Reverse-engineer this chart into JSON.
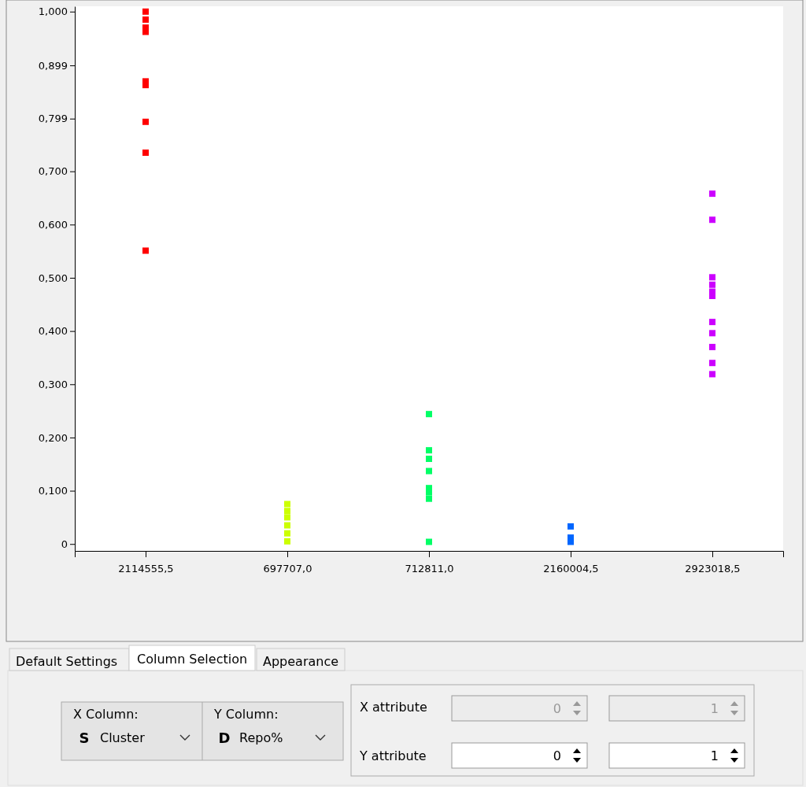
{
  "chart_data": {
    "type": "scatter",
    "categories": [
      "2114555,5",
      "697707,0",
      "712811,0",
      "2160004,5",
      "2923018,5"
    ],
    "series": [
      {
        "color": "#ff0000",
        "x": [
          "2114555,5",
          "2114555,5",
          "2114555,5",
          "2114555,5",
          "2114555,5",
          "2114555,5",
          "2114555,5",
          "2114555,5",
          "2114555,5"
        ],
        "values": [
          1.0,
          0.985,
          0.97,
          0.962,
          0.869,
          0.862,
          0.793,
          0.735,
          0.551
        ]
      },
      {
        "color": "#ccff00",
        "x": [
          "697707,0",
          "697707,0",
          "697707,0",
          "697707,0",
          "697707,0",
          "697707,0"
        ],
        "values": [
          0.005,
          0.02,
          0.035,
          0.05,
          0.062,
          0.075
        ]
      },
      {
        "color": "#00ff66",
        "x": [
          "712811,0",
          "712811,0",
          "712811,0",
          "712811,0",
          "712811,0",
          "712811,0",
          "712811,0",
          "712811,0",
          "712811,0"
        ],
        "values": [
          0.244,
          0.176,
          null,
          0.16,
          0.137,
          0.105,
          0.097,
          0.085,
          0.004
        ]
      },
      {
        "color": "#0066ff",
        "x": [
          "2160004,5",
          "2160004,5",
          "2160004,5"
        ],
        "values": [
          0.033,
          0.012,
          0.004
        ]
      },
      {
        "color": "#cc00ff",
        "x": [
          "2923018,5",
          "2923018,5",
          "2923018,5",
          "2923018,5",
          "2923018,5",
          "2923018,5",
          "2923018,5",
          "2923018,5",
          "2923018,5",
          "2923018,5",
          "2923018,5"
        ],
        "values": [
          0.658,
          0.609,
          0.501,
          0.487,
          0.474,
          0.466,
          0.417,
          0.396,
          0.37,
          0.34,
          0.319
        ]
      }
    ],
    "ylim": [
      -0.013,
      1.01
    ],
    "yticks": [
      0,
      {
        "value": 0.1,
        "label": "0,100"
      },
      {
        "value": 0.2,
        "label": "0,200"
      },
      {
        "value": 0.3,
        "label": "0,300"
      },
      {
        "value": 0.4,
        "label": "0,400"
      },
      {
        "value": 0.5,
        "label": "0,500"
      },
      {
        "value": 0.6,
        "label": "0,600"
      },
      {
        "value": 0.7,
        "label": "0,700"
      },
      {
        "value": 0.799,
        "label": "0,799"
      },
      {
        "value": 0.899,
        "label": "0,899"
      },
      {
        "value": 1.0,
        "label": "1,000"
      }
    ],
    "marker": "square",
    "grid": false,
    "annotations": [
      "Default Settings",
      "Column Selection",
      "Appearance",
      "X Column:",
      "S",
      "Cluster",
      "Y Column:",
      "D",
      "Repo%",
      "X attribute",
      "0",
      "1",
      "Y attribute",
      "0",
      "1"
    ]
  }
}
